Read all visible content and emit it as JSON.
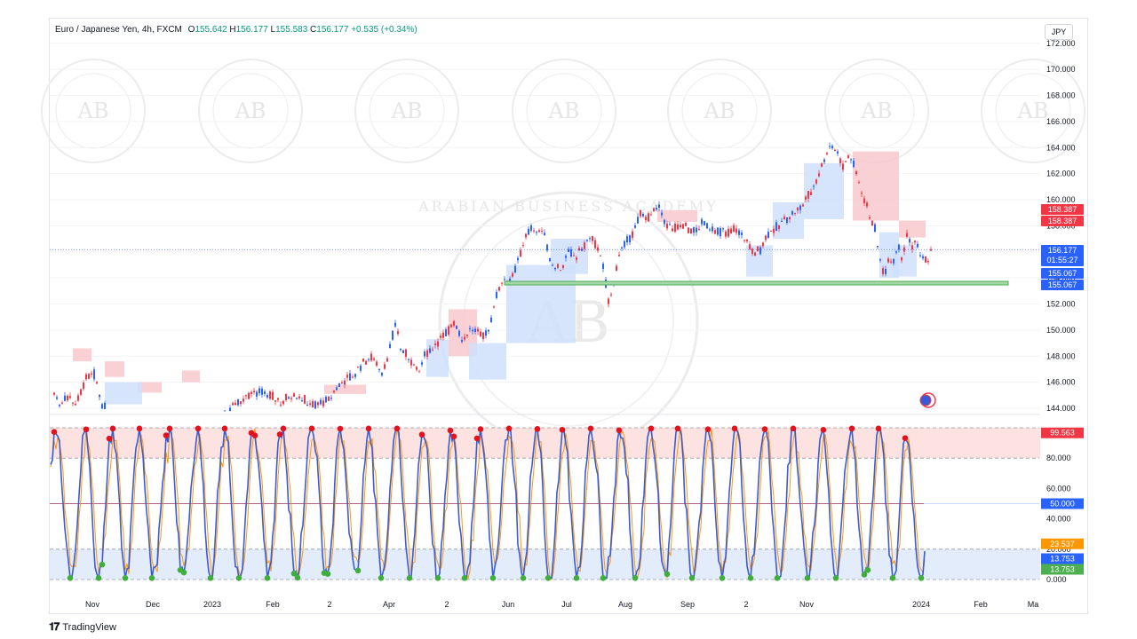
{
  "header": {
    "symbol": "Euro / Japanese Yen, 4h, FXCM",
    "open_label": "O",
    "open": "155.642",
    "high_label": "H",
    "high": "156.177",
    "low_label": "L",
    "low": "155.583",
    "close_label": "C",
    "close": "156.177",
    "change": "+0.535 (+0.34%)"
  },
  "currency_button": "JPY",
  "footer": {
    "brand": "TradingView"
  },
  "watermark": {
    "text": "ARABIAN BUSINESS ACADEMY",
    "monogram": "AB"
  },
  "colors": {
    "up": "#089981",
    "down": "#f23645",
    "accent": "#2962ff",
    "support_line": "#4caf50",
    "rsi_line": "#3a5bd6",
    "signal_line": "#ff9800",
    "overbought_zone": "#fde2e2",
    "oversold_zone": "#e3ecfb"
  },
  "chart_data": [
    {
      "type": "candlestick",
      "title": "Euro / Japanese Yen, 4h, FXCM",
      "y_ticks": [
        "172.000",
        "170.000",
        "168.000",
        "166.000",
        "164.000",
        "162.000",
        "160.000",
        "158.000",
        "156.000",
        "154.000",
        "152.000",
        "150.000",
        "148.000",
        "146.000",
        "144.000"
      ],
      "ylim": [
        144,
        172.6
      ],
      "x_ticks": [
        "Nov",
        "Dec",
        "2023",
        "Feb",
        "2",
        "Apr",
        "2",
        "Jun",
        "Jul",
        "Aug",
        "Sep",
        "2",
        "Nov",
        "",
        "2024",
        "Feb",
        "Ma"
      ],
      "price_path": [
        [
          0,
          144.3
        ],
        [
          8,
          147.5
        ],
        [
          15,
          148.0
        ],
        [
          22,
          146.8
        ],
        [
          28,
          147.8
        ],
        [
          35,
          144.9
        ],
        [
          45,
          144.5
        ],
        [
          55,
          146.0
        ],
        [
          65,
          144.4
        ],
        [
          75,
          145.0
        ],
        [
          85,
          144.3
        ],
        [
          95,
          146.2
        ],
        [
          105,
          146.6
        ],
        [
          115,
          144.1
        ],
        [
          130,
          143.5
        ],
        [
          160,
          143.8
        ],
        [
          220,
          143.6
        ],
        [
          260,
          144.2
        ],
        [
          285,
          145.3
        ],
        [
          300,
          145.1
        ],
        [
          315,
          144.5
        ],
        [
          330,
          145.2
        ],
        [
          350,
          144.3
        ],
        [
          370,
          144.6
        ],
        [
          380,
          145.8
        ],
        [
          395,
          146.5
        ],
        [
          410,
          147.6
        ],
        [
          420,
          148.0
        ],
        [
          430,
          146.7
        ],
        [
          440,
          149.2
        ],
        [
          445,
          151.0
        ],
        [
          450,
          148.5
        ],
        [
          460,
          147.9
        ],
        [
          470,
          146.5
        ],
        [
          478,
          148.2
        ],
        [
          490,
          149.0
        ],
        [
          500,
          149.7
        ],
        [
          510,
          150.6
        ],
        [
          520,
          149.3
        ],
        [
          530,
          150.2
        ],
        [
          540,
          149.5
        ],
        [
          550,
          150.1
        ],
        [
          555,
          152.0
        ],
        [
          565,
          154.0
        ],
        [
          575,
          153.8
        ],
        [
          585,
          156.0
        ],
        [
          592,
          157.5
        ],
        [
          600,
          157.9
        ],
        [
          610,
          157.6
        ],
        [
          620,
          155.2
        ],
        [
          630,
          154.8
        ],
        [
          640,
          156.0
        ],
        [
          648,
          155.5
        ],
        [
          655,
          156.5
        ],
        [
          665,
          157.0
        ],
        [
          675,
          156.0
        ],
        [
          685,
          152.0
        ],
        [
          690,
          153.5
        ],
        [
          695,
          155.8
        ],
        [
          705,
          156.8
        ],
        [
          712,
          157.5
        ],
        [
          720,
          159.0
        ],
        [
          730,
          158.6
        ],
        [
          740,
          159.4
        ],
        [
          750,
          158.0
        ],
        [
          760,
          157.8
        ],
        [
          770,
          158.0
        ],
        [
          780,
          157.6
        ],
        [
          790,
          158.2
        ],
        [
          800,
          157.9
        ],
        [
          810,
          157.6
        ],
        [
          818,
          157.5
        ],
        [
          825,
          157.8
        ],
        [
          835,
          157.4
        ],
        [
          845,
          156.0
        ],
        [
          855,
          156.2
        ],
        [
          862,
          157.3
        ],
        [
          870,
          157.7
        ],
        [
          880,
          158.3
        ],
        [
          890,
          158.9
        ],
        [
          900,
          159.4
        ],
        [
          910,
          160.5
        ],
        [
          918,
          161.4
        ],
        [
          925,
          162.8
        ],
        [
          932,
          164.2
        ],
        [
          940,
          163.9
        ],
        [
          948,
          162.6
        ],
        [
          955,
          163.5
        ],
        [
          962,
          162.3
        ],
        [
          970,
          160.6
        ],
        [
          978,
          158.8
        ],
        [
          985,
          157.6
        ],
        [
          990,
          155.2
        ],
        [
          995,
          154.3
        ],
        [
          1000,
          155.8
        ],
        [
          1005,
          155.4
        ],
        [
          1010,
          156.6
        ],
        [
          1015,
          155.5
        ],
        [
          1020,
          157.3
        ],
        [
          1025,
          156.4
        ],
        [
          1030,
          156.9
        ],
        [
          1035,
          156.0
        ],
        [
          1040,
          155.4
        ],
        [
          1045,
          155.6
        ],
        [
          1048,
          156.18
        ]
      ],
      "last_price": "156.177",
      "countdown": "01:55:27",
      "labels": {
        "resistance_1": "158.387",
        "resistance_2": "158.387",
        "support_1": "155.067",
        "support_2": "155.067"
      },
      "support_level": 153.6
    },
    {
      "type": "line",
      "indicator": "oscillator",
      "y_ticks": [
        "80.000",
        "60.000",
        "40.000",
        "20.000",
        "0.000"
      ],
      "ylim": [
        0,
        100
      ],
      "levels": {
        "upper": 80,
        "middle": 50,
        "lower": 20
      },
      "bands": {
        "overbought": [
          80,
          100
        ],
        "oversold": [
          0,
          20
        ]
      },
      "value_labels": {
        "max": "99.563",
        "mid": "50.000",
        "signal": "23.537",
        "fast": "13.753",
        "slow": "13.753"
      }
    }
  ]
}
